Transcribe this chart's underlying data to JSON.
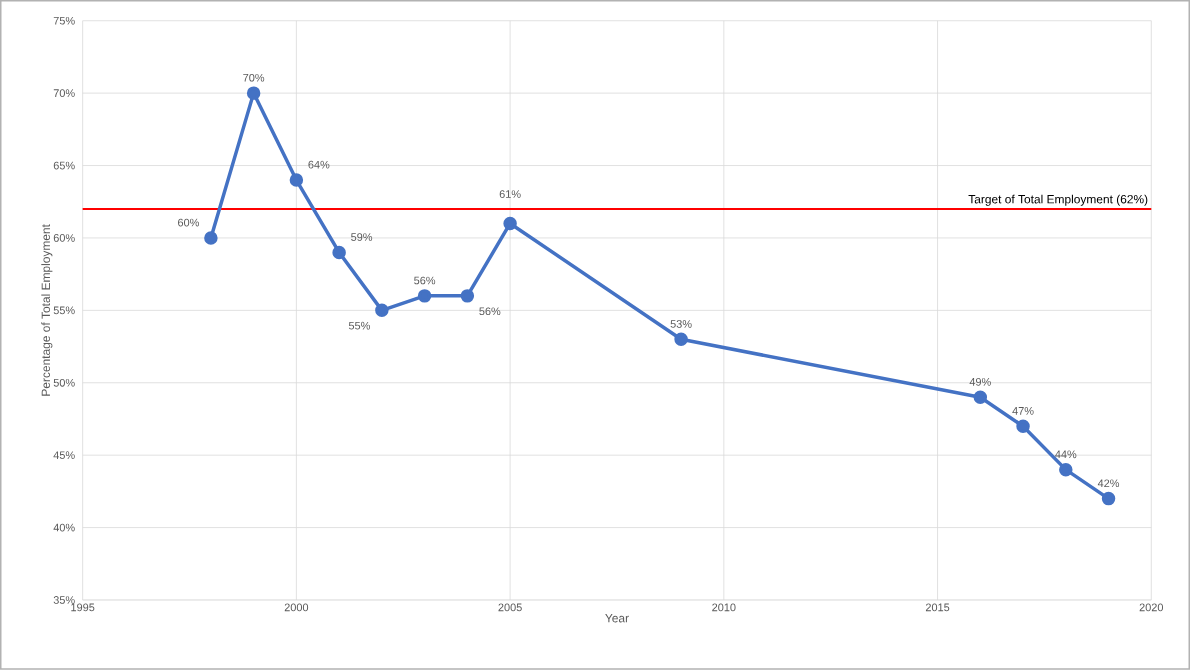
{
  "chart_data": {
    "type": "line",
    "xlabel": "Year",
    "ylabel": "Percentage of Total Employment",
    "x": [
      1998,
      1999,
      2000,
      2001,
      2002,
      2003,
      2004,
      2005,
      2009,
      2016,
      2017,
      2018,
      2019
    ],
    "series": [
      {
        "color": "#4472c4",
        "values": [
          60,
          70,
          64,
          59,
          55,
          56,
          56,
          61,
          53,
          49,
          47,
          44,
          42
        ],
        "value_labels": [
          "60%",
          "70%",
          "64%",
          "59%",
          "55%",
          "56%",
          "56%",
          "61%",
          "53%",
          "49%",
          "47%",
          "44%",
          "42%"
        ]
      }
    ],
    "xlim": [
      1995,
      2020
    ],
    "xticks": [
      1995,
      2000,
      2005,
      2010,
      2015,
      2020
    ],
    "ylim": [
      35,
      75
    ],
    "yticks": [
      {
        "value": 35,
        "label": "35%"
      },
      {
        "value": 40,
        "label": "40%"
      },
      {
        "value": 45,
        "label": "45%"
      },
      {
        "value": 50,
        "label": "50%"
      },
      {
        "value": 55,
        "label": "55%"
      },
      {
        "value": 60,
        "label": "60%"
      },
      {
        "value": 65,
        "label": "65%"
      },
      {
        "value": 70,
        "label": "70%"
      },
      {
        "value": 75,
        "label": "75%"
      }
    ],
    "ref_lines": [
      {
        "axis": "y",
        "value": 62,
        "label": "Target of Total Employment (62%)",
        "color": "#ff0000"
      }
    ],
    "grid": true,
    "marker": "circle",
    "line_style": "solid"
  }
}
